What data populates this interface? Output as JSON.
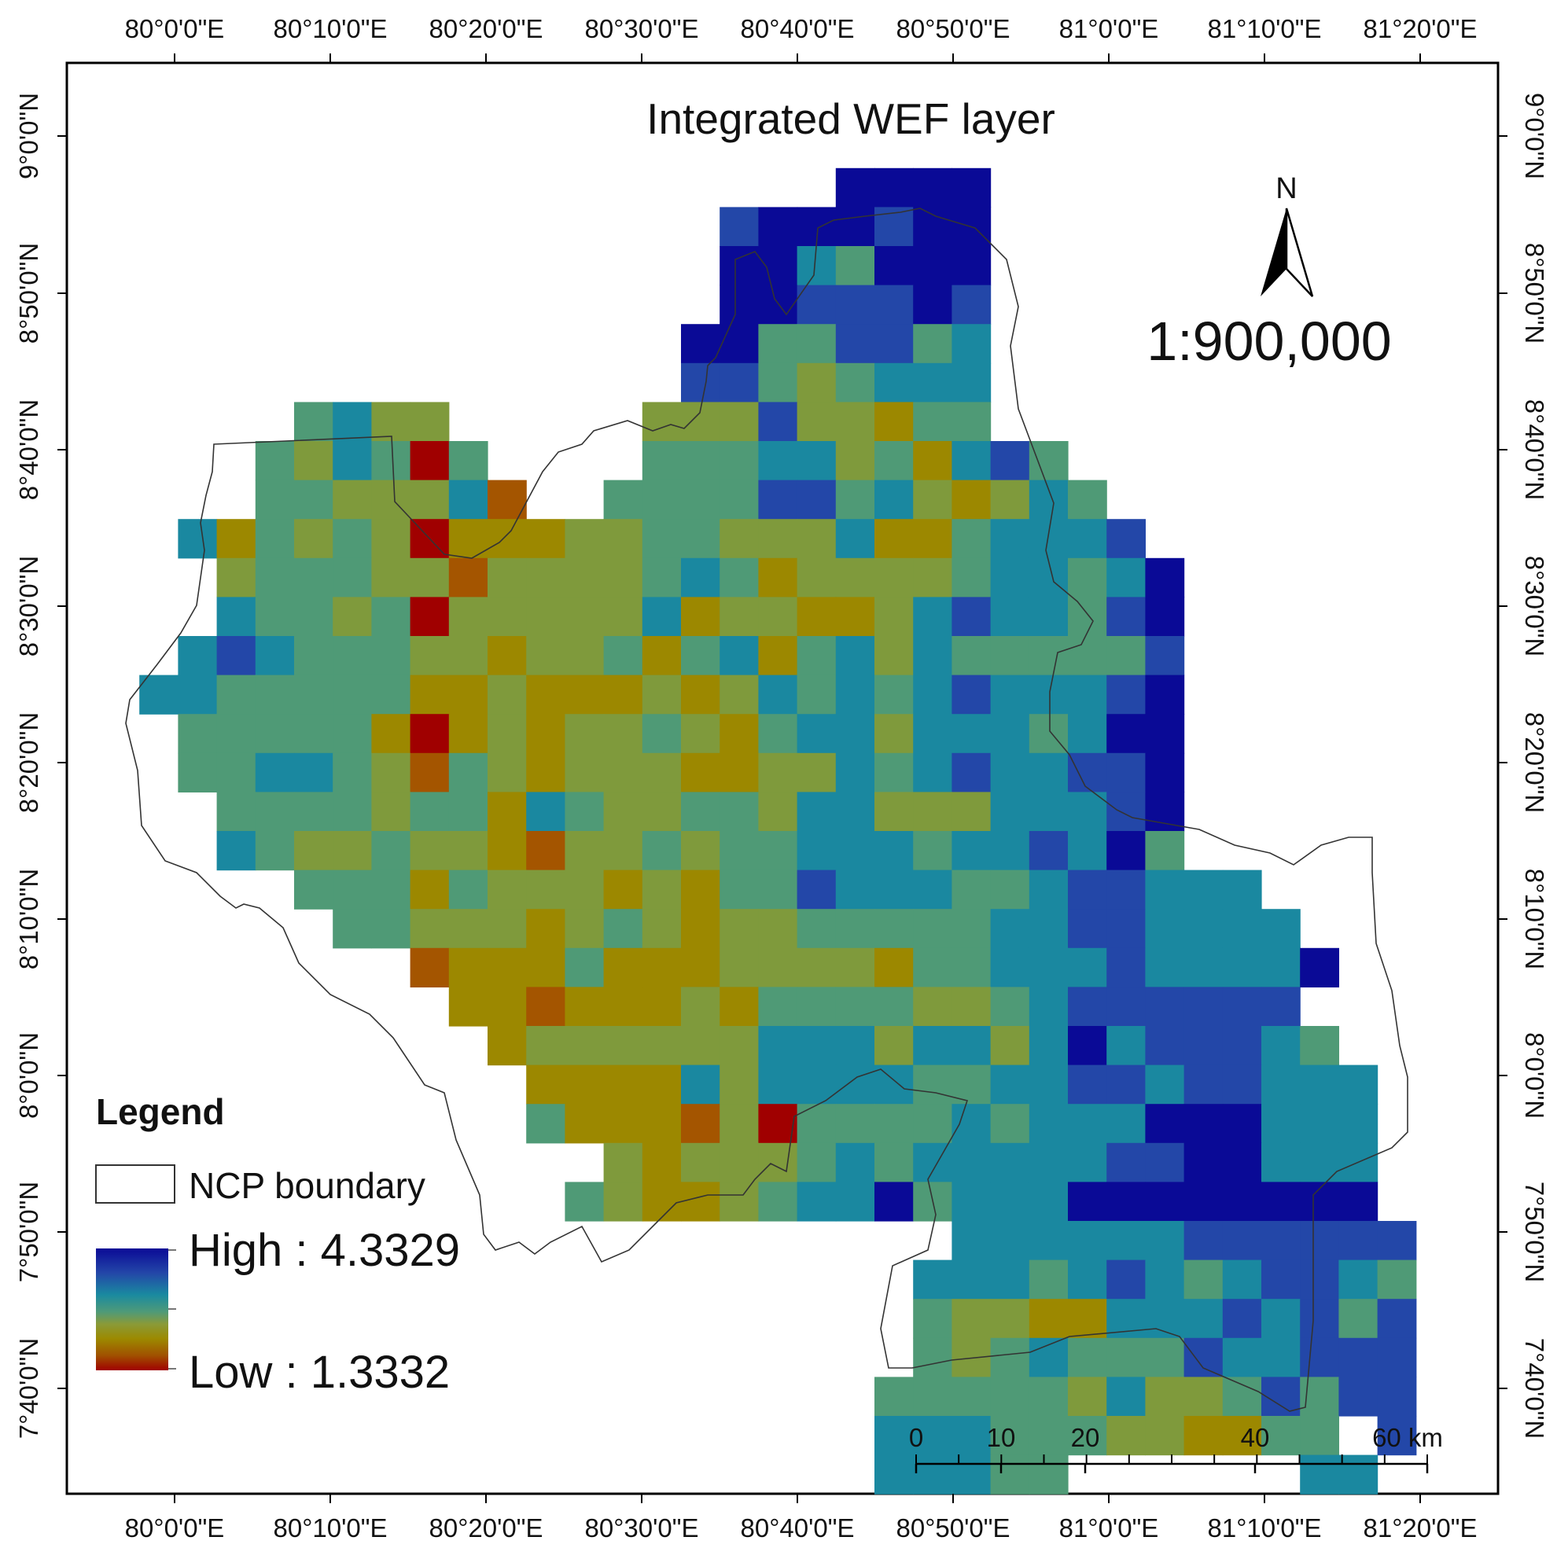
{
  "map": {
    "title": "Integrated WEF layer",
    "north_label": "N",
    "scale_ratio": "1:900,000",
    "lon_ticks": [
      "80°0'0\"E",
      "80°10'0\"E",
      "80°20'0\"E",
      "80°30'0\"E",
      "80°40'0\"E",
      "80°50'0\"E",
      "81°0'0\"E",
      "81°10'0\"E",
      "81°20'0\"E"
    ],
    "lat_ticks": [
      "9°0'0\"N",
      "8°50'0\"N",
      "8°40'0\"N",
      "8°30'0\"N",
      "8°20'0\"N",
      "8°10'0\"N",
      "8°0'0\"N",
      "7°50'0\"N",
      "7°40'0\"N"
    ],
    "scalebar": {
      "labels": [
        "0",
        "10",
        "20",
        "40",
        "60 km"
      ]
    },
    "legend": {
      "title": "Legend",
      "boundary_label": "NCP boundary",
      "high_label": "High : 4.3329",
      "low_label": "Low : 1.3332",
      "color_ramp": [
        "#0a0a96",
        "#2346a8",
        "#1a8aa0",
        "#4f9a78",
        "#8a9a38",
        "#9c8a00",
        "#a05000",
        "#a00000"
      ]
    },
    "raster_legend_colors": {
      "1": "#0a0a96",
      "2": "#2347a8",
      "3": "#1a88a0",
      "4": "#4f9a76",
      "5": "#7f9a3c",
      "6": "#9c8800",
      "7": "#a45500",
      "8": "#a00000"
    },
    "raster_rows": [
      "0000000000000000000000000000000000000",
      "0000000000000000000000000000000000000",
      "0000000000000000000000000000000000000",
      "0000000000000000000111100000000000000",
      "0000000000000000211121100000000000000",
      "0000000000000000113411100000000000000",
      "0000000000000000112221200000000000000",
      "0000000000000001144224300000000000000",
      "0000000000000002245433300000000000000",
      "0000043550000055525564400000000000000",
      "0000453484000044433546324000000000000",
      "0000445553700444422435653400000000000",
      "0036454586665544555366433320000000000",
      "0005444557555543465555433431000000000",
      "0003445485555536556653233421000000000",
      "0032344455655464364353444442000000000",
      "0334444466566656534343233321000000000",
      "0044444686565545643353334311000000000",
      "0044334574565556655343233221000000000",
      "0004444544634554453355533321000000000",
      "0003455455675545443334332314000000000",
      "0000044464555656442333443223330000000",
      "0000004455565456554444433223333000000",
      "0000000076664666555564433323333100000",
      "0000000006676665644445543222222000000",
      "0000000000655555533353353132223400000",
      "0000000000066663533334433223223330000",
      "0000000000046667584444343331113330000",
      "0000000000000565554343333322113330000",
      "0000000000004566543314333111111110000",
      "0000000000000000000000333333222222000",
      "0000000000000000000003334323432234000",
      "0000000000000000000004556633323242000",
      "0000000000000000000004543444233222000",
      "0000000000000000000044444535542422000",
      "0000000000000000000033344455664402000",
      "0000000000000000000033344000000330000",
      "0000000000000000000000000000000000000"
    ]
  }
}
